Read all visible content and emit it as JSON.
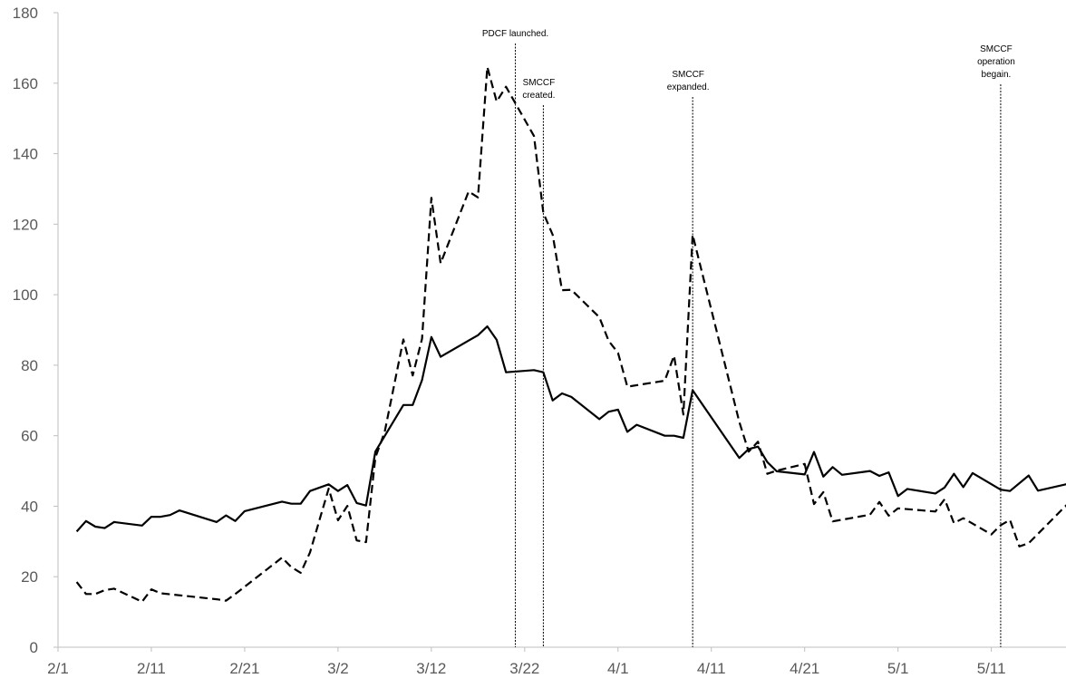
{
  "chart_data": {
    "type": "line",
    "title": "",
    "xlabel": "",
    "ylabel": "",
    "ylim": [
      0,
      180
    ],
    "yticks": [
      0,
      20,
      40,
      60,
      80,
      100,
      120,
      140,
      160,
      180
    ],
    "xlim": [
      "2020-02-01",
      "2020-05-19"
    ],
    "xtick_labels": [
      "2/1",
      "2/11",
      "2/21",
      "3/2",
      "3/12",
      "3/22",
      "4/1",
      "4/11",
      "4/21",
      "5/1",
      "5/11"
    ],
    "grid": false,
    "legend": "none",
    "series": [
      {
        "style": "solid",
        "color": "#000000",
        "points": [
          [
            "2020-02-03",
            32.8
          ],
          [
            "2020-02-04",
            35.8
          ],
          [
            "2020-02-05",
            34.2
          ],
          [
            "2020-02-06",
            33.8
          ],
          [
            "2020-02-07",
            35.5
          ],
          [
            "2020-02-10",
            34.5
          ],
          [
            "2020-02-11",
            37.0
          ],
          [
            "2020-02-12",
            37.0
          ],
          [
            "2020-02-13",
            37.5
          ],
          [
            "2020-02-14",
            38.8
          ],
          [
            "2020-02-18",
            35.5
          ],
          [
            "2020-02-19",
            37.4
          ],
          [
            "2020-02-20",
            35.8
          ],
          [
            "2020-02-21",
            38.6
          ],
          [
            "2020-02-25",
            41.3
          ],
          [
            "2020-02-26",
            40.7
          ],
          [
            "2020-02-27",
            40.7
          ],
          [
            "2020-02-28",
            44.3
          ],
          [
            "2020-03-01",
            46.2
          ],
          [
            "2020-03-02",
            44.3
          ],
          [
            "2020-03-03",
            46.0
          ],
          [
            "2020-03-04",
            40.9
          ],
          [
            "2020-03-05",
            40.2
          ],
          [
            "2020-03-06",
            55.5
          ],
          [
            "2020-03-09",
            68.7
          ],
          [
            "2020-03-10",
            68.7
          ],
          [
            "2020-03-11",
            75.8
          ],
          [
            "2020-03-12",
            88.0
          ],
          [
            "2020-03-13",
            82.4
          ],
          [
            "2020-03-16",
            87.0
          ],
          [
            "2020-03-17",
            88.5
          ],
          [
            "2020-03-18",
            91.0
          ],
          [
            "2020-03-19",
            87.2
          ],
          [
            "2020-03-20",
            78.0
          ],
          [
            "2020-03-23",
            78.6
          ],
          [
            "2020-03-24",
            78.0
          ],
          [
            "2020-03-25",
            70.0
          ],
          [
            "2020-03-26",
            72.0
          ],
          [
            "2020-03-27",
            71.0
          ],
          [
            "2020-03-30",
            64.7
          ],
          [
            "2020-03-31",
            66.8
          ],
          [
            "2020-04-01",
            67.4
          ],
          [
            "2020-04-02",
            61.1
          ],
          [
            "2020-04-03",
            63.1
          ],
          [
            "2020-04-06",
            60.0
          ],
          [
            "2020-04-07",
            60.0
          ],
          [
            "2020-04-08",
            59.4
          ],
          [
            "2020-04-09",
            72.9
          ],
          [
            "2020-04-14",
            53.7
          ],
          [
            "2020-04-15",
            56.2
          ],
          [
            "2020-04-16",
            56.9
          ],
          [
            "2020-04-17",
            52.5
          ],
          [
            "2020-04-18",
            49.9
          ],
          [
            "2020-04-21",
            49.0
          ],
          [
            "2020-04-22",
            55.4
          ],
          [
            "2020-04-23",
            48.4
          ],
          [
            "2020-04-24",
            51.1
          ],
          [
            "2020-04-25",
            48.9
          ],
          [
            "2020-04-28",
            50.0
          ],
          [
            "2020-04-29",
            48.6
          ],
          [
            "2020-04-30",
            49.6
          ],
          [
            "2020-05-01",
            42.9
          ],
          [
            "2020-05-02",
            44.9
          ],
          [
            "2020-05-05",
            43.6
          ],
          [
            "2020-05-06",
            45.3
          ],
          [
            "2020-05-07",
            49.2
          ],
          [
            "2020-05-08",
            45.4
          ],
          [
            "2020-05-09",
            49.4
          ],
          [
            "2020-05-12",
            44.7
          ],
          [
            "2020-05-13",
            44.3
          ],
          [
            "2020-05-15",
            48.7
          ],
          [
            "2020-05-16",
            44.4
          ],
          [
            "2020-05-19",
            46.2
          ],
          [
            "2020-05-20",
            48.0
          ]
        ]
      },
      {
        "style": "dashed",
        "color": "#000000",
        "points": [
          [
            "2020-02-03",
            18.5
          ],
          [
            "2020-02-04",
            15.1
          ],
          [
            "2020-02-05",
            15.1
          ],
          [
            "2020-02-06",
            16.2
          ],
          [
            "2020-02-07",
            16.6
          ],
          [
            "2020-02-10",
            12.9
          ],
          [
            "2020-02-11",
            16.4
          ],
          [
            "2020-02-12",
            15.3
          ],
          [
            "2020-02-18",
            13.6
          ],
          [
            "2020-02-19",
            13.2
          ],
          [
            "2020-02-20",
            15.1
          ],
          [
            "2020-02-25",
            25.4
          ],
          [
            "2020-02-26",
            22.7
          ],
          [
            "2020-02-27",
            21.1
          ],
          [
            "2020-02-28",
            26.9
          ],
          [
            "2020-03-01",
            45.0
          ],
          [
            "2020-03-02",
            36.0
          ],
          [
            "2020-03-03",
            40.1
          ],
          [
            "2020-03-04",
            30.3
          ],
          [
            "2020-03-05",
            29.8
          ],
          [
            "2020-03-06",
            53.8
          ],
          [
            "2020-03-07",
            61.1
          ],
          [
            "2020-03-09",
            87.3
          ],
          [
            "2020-03-10",
            77.1
          ],
          [
            "2020-03-11",
            87.5
          ],
          [
            "2020-03-12",
            127.5
          ],
          [
            "2020-03-13",
            108.9
          ],
          [
            "2020-03-16",
            129.3
          ],
          [
            "2020-03-17",
            127.6
          ],
          [
            "2020-03-18",
            164.6
          ],
          [
            "2020-03-19",
            154.8
          ],
          [
            "2020-03-20",
            159.0
          ],
          [
            "2020-03-23",
            145.0
          ],
          [
            "2020-03-24",
            123.2
          ],
          [
            "2020-03-25",
            117.0
          ],
          [
            "2020-03-26",
            101.3
          ],
          [
            "2020-03-27",
            101.4
          ],
          [
            "2020-03-30",
            93.6
          ],
          [
            "2020-03-31",
            86.9
          ],
          [
            "2020-04-01",
            83.5
          ],
          [
            "2020-04-02",
            73.9
          ],
          [
            "2020-04-06",
            75.6
          ],
          [
            "2020-04-07",
            82.7
          ],
          [
            "2020-04-08",
            66.0
          ],
          [
            "2020-04-09",
            117.0
          ],
          [
            "2020-04-14",
            63.9
          ],
          [
            "2020-04-15",
            55.5
          ],
          [
            "2020-04-16",
            58.3
          ],
          [
            "2020-04-17",
            49.2
          ],
          [
            "2020-04-18",
            50.1
          ],
          [
            "2020-04-21",
            52.0
          ],
          [
            "2020-04-22",
            40.6
          ],
          [
            "2020-04-23",
            44.0
          ],
          [
            "2020-04-24",
            35.7
          ],
          [
            "2020-04-28",
            37.6
          ],
          [
            "2020-04-29",
            41.2
          ],
          [
            "2020-04-30",
            37.3
          ],
          [
            "2020-05-01",
            39.4
          ],
          [
            "2020-05-05",
            38.5
          ],
          [
            "2020-05-06",
            42.0
          ],
          [
            "2020-05-07",
            35.2
          ],
          [
            "2020-05-08",
            36.6
          ],
          [
            "2020-05-11",
            32.0
          ],
          [
            "2020-05-12",
            34.6
          ],
          [
            "2020-05-13",
            36.1
          ],
          [
            "2020-05-14",
            28.6
          ],
          [
            "2020-05-15",
            29.5
          ],
          [
            "2020-05-19",
            40.2
          ],
          [
            "2020-05-20",
            33.7
          ]
        ]
      }
    ],
    "annotations": [
      {
        "date": "2020-03-21",
        "lines": [
          "PDCF launched."
        ]
      },
      {
        "date": "2020-03-24",
        "lines": [
          "SMCCF",
          "created."
        ]
      },
      {
        "date": "2020-04-09",
        "lines": [
          "SMCCF",
          "expanded."
        ]
      },
      {
        "date": "2020-05-12",
        "lines": [
          "SMCCF",
          "operation",
          "begain."
        ]
      }
    ]
  }
}
